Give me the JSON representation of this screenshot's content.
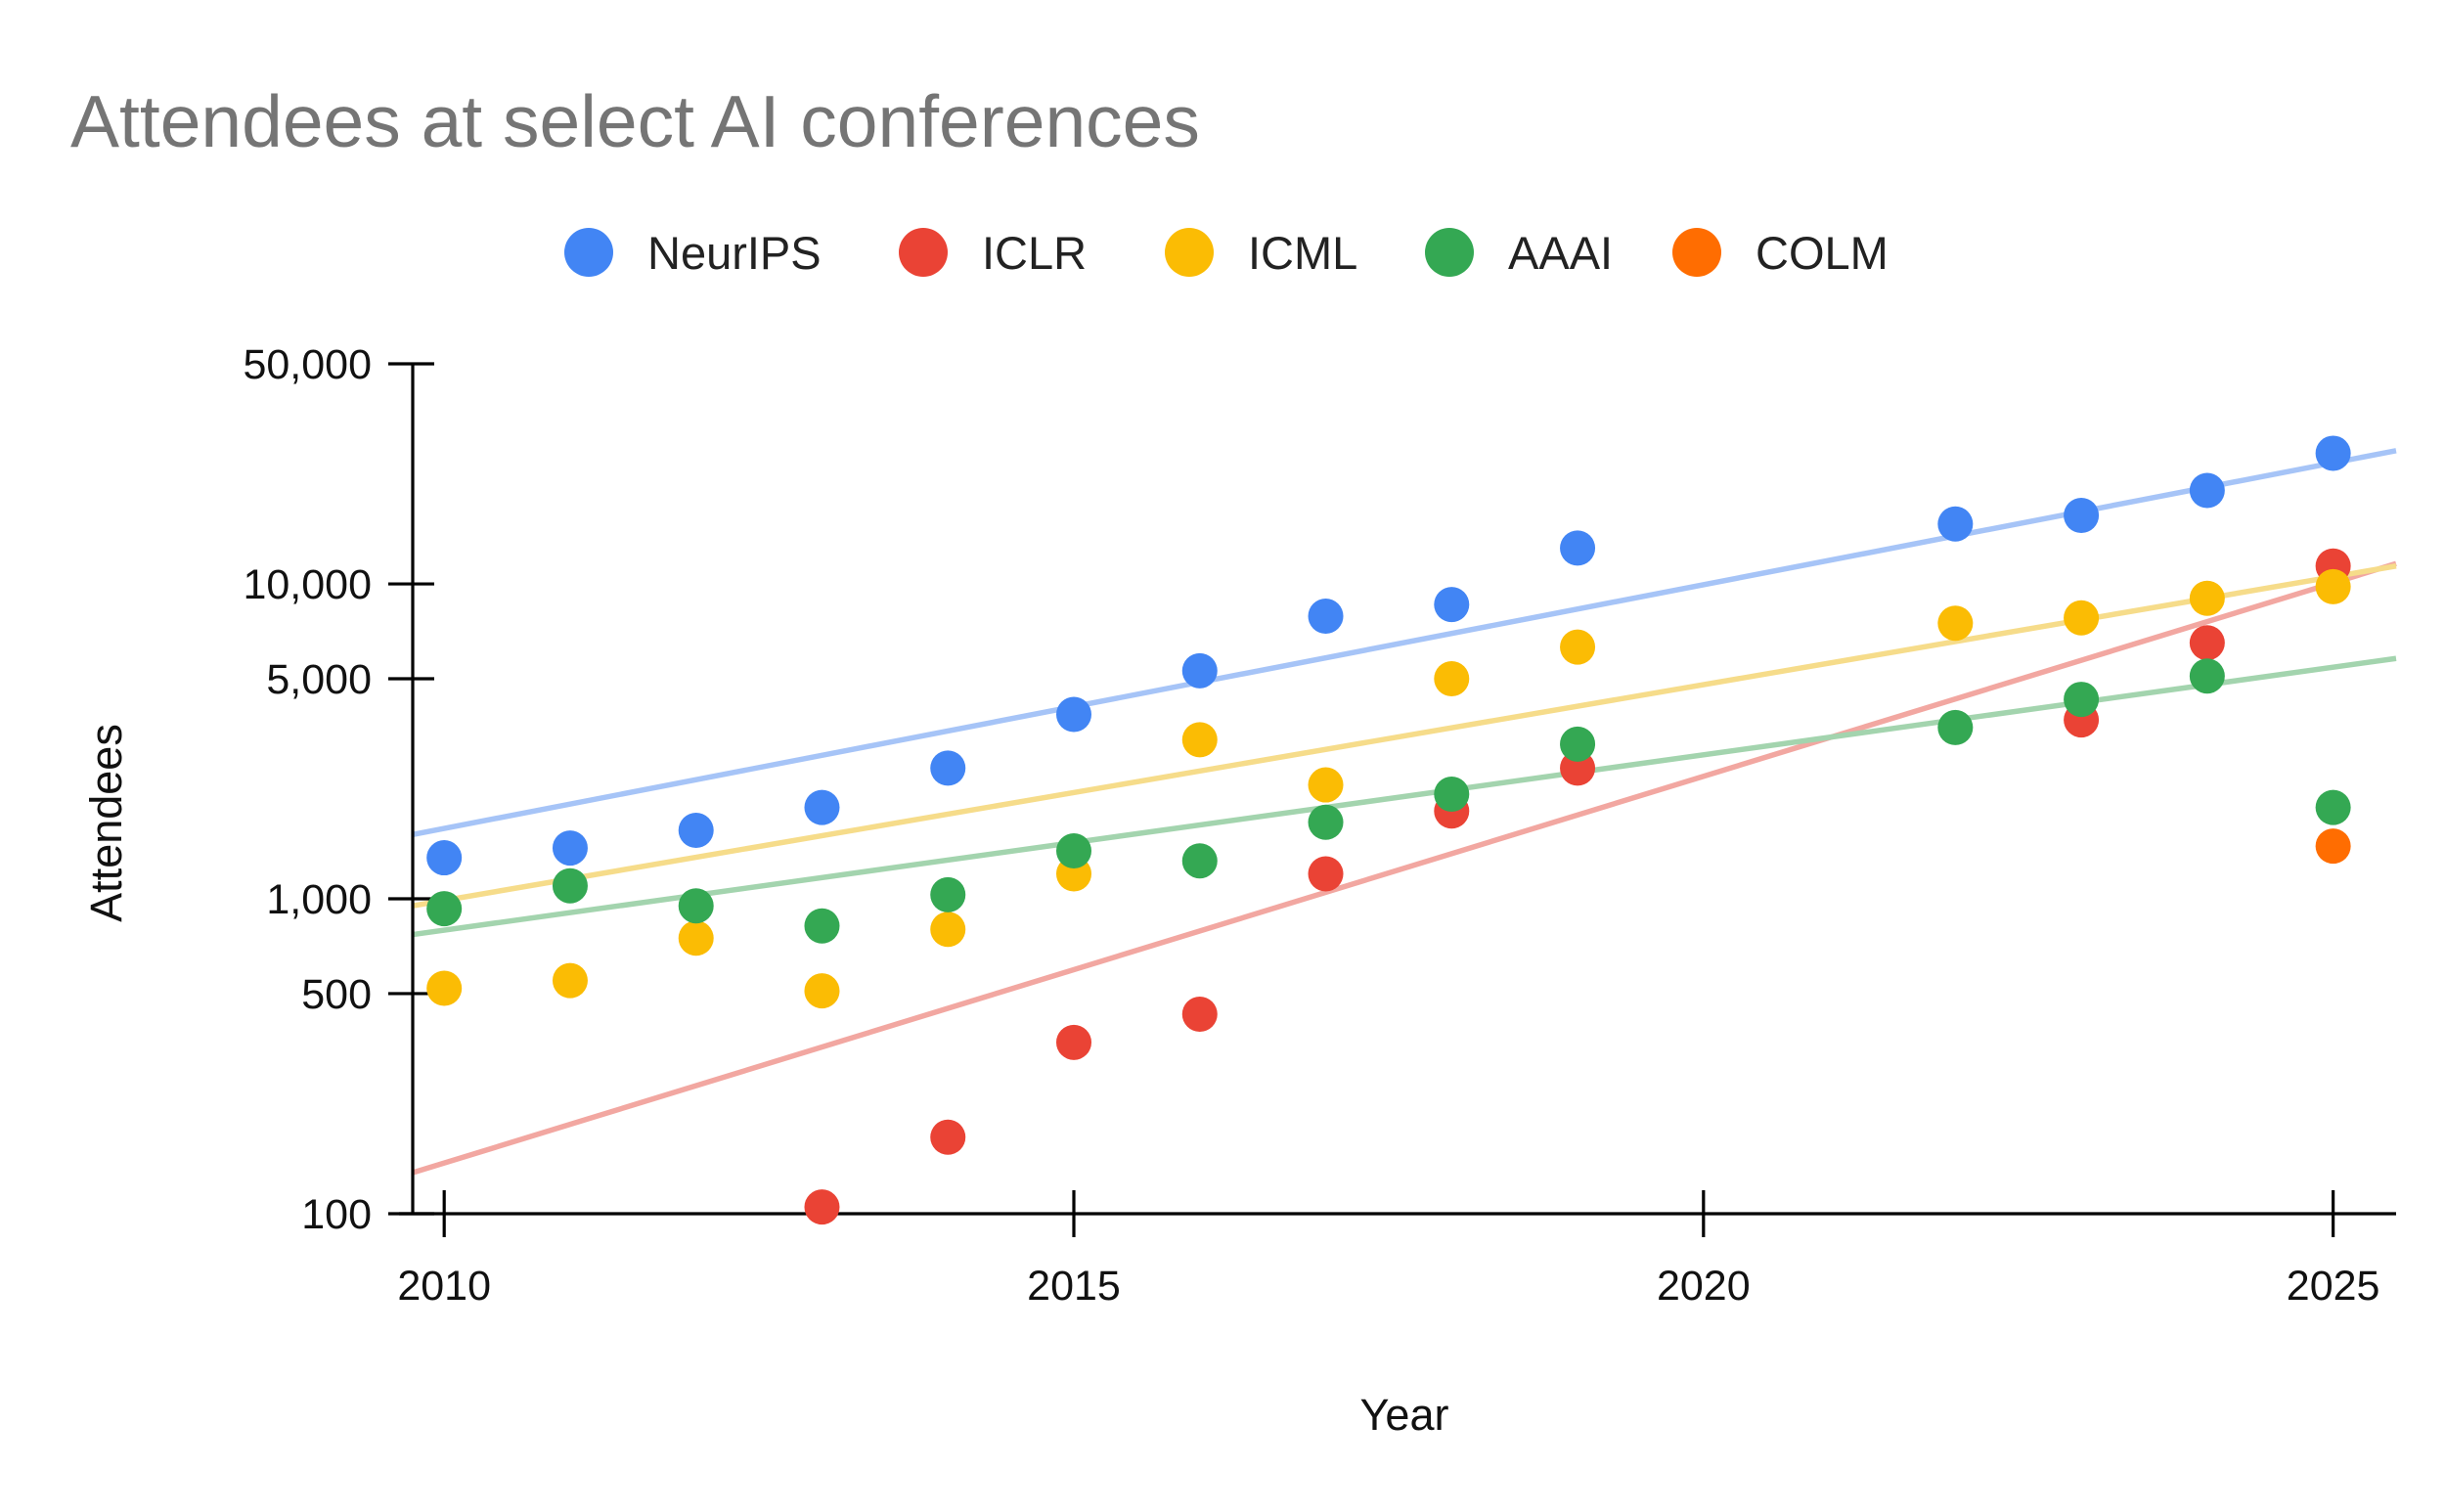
{
  "chart_data": {
    "type": "scatter",
    "title": "Attendees at select AI conferences",
    "xlabel": "Year",
    "ylabel": "Attendees",
    "y_scale": "log",
    "xlim": [
      2009.75,
      2025.5
    ],
    "ylim": [
      100,
      50000
    ],
    "x_ticks": [
      {
        "value": 2010,
        "label": "2010"
      },
      {
        "value": 2015,
        "label": "2015"
      },
      {
        "value": 2020,
        "label": "2020"
      },
      {
        "value": 2025,
        "label": "2025"
      }
    ],
    "y_ticks": [
      {
        "value": 100,
        "label": "100"
      },
      {
        "value": 500,
        "label": "500"
      },
      {
        "value": 1000,
        "label": "1,000"
      },
      {
        "value": 5000,
        "label": "5,000"
      },
      {
        "value": 10000,
        "label": "10,000"
      },
      {
        "value": 50000,
        "label": "50,000"
      }
    ],
    "grid": false,
    "legend_position": "top",
    "trendlines": "exponential",
    "series": [
      {
        "name": "NeurIPS",
        "color": "#4285F4",
        "trend_color": "#A6C4F7",
        "points": [
          {
            "x": 2010,
            "y": 1350
          },
          {
            "x": 2011,
            "y": 1450
          },
          {
            "x": 2012,
            "y": 1650
          },
          {
            "x": 2013,
            "y": 1950
          },
          {
            "x": 2014,
            "y": 2600
          },
          {
            "x": 2015,
            "y": 3850
          },
          {
            "x": 2016,
            "y": 5300
          },
          {
            "x": 2017,
            "y": 7900
          },
          {
            "x": 2018,
            "y": 8600
          },
          {
            "x": 2019,
            "y": 13000
          },
          {
            "x": 2022,
            "y": 15500
          },
          {
            "x": 2023,
            "y": 16500
          },
          {
            "x": 2024,
            "y": 19800
          },
          {
            "x": 2025,
            "y": 26000
          }
        ],
        "trend": {
          "y_at_x_start": 1600,
          "y_at_x_end": 26500
        }
      },
      {
        "name": "ICLR",
        "color": "#EA4335",
        "trend_color": "#F2A7A1",
        "points": [
          {
            "x": 2013,
            "y": 105
          },
          {
            "x": 2014,
            "y": 175
          },
          {
            "x": 2015,
            "y": 350
          },
          {
            "x": 2016,
            "y": 430
          },
          {
            "x": 2017,
            "y": 1200
          },
          {
            "x": 2018,
            "y": 1900
          },
          {
            "x": 2019,
            "y": 2600
          },
          {
            "x": 2023,
            "y": 3700
          },
          {
            "x": 2024,
            "y": 6500
          },
          {
            "x": 2025,
            "y": 11400
          }
        ],
        "trend": {
          "y_at_x_start": 135,
          "y_at_x_end": 11600
        }
      },
      {
        "name": "ICML",
        "color": "#FBBC04",
        "trend_color": "#F6DC8A",
        "points": [
          {
            "x": 2010,
            "y": 520
          },
          {
            "x": 2011,
            "y": 550
          },
          {
            "x": 2012,
            "y": 750
          },
          {
            "x": 2013,
            "y": 510
          },
          {
            "x": 2014,
            "y": 800
          },
          {
            "x": 2015,
            "y": 1200
          },
          {
            "x": 2016,
            "y": 3200
          },
          {
            "x": 2017,
            "y": 2300
          },
          {
            "x": 2018,
            "y": 5000
          },
          {
            "x": 2019,
            "y": 6300
          },
          {
            "x": 2022,
            "y": 7500
          },
          {
            "x": 2023,
            "y": 7800
          },
          {
            "x": 2024,
            "y": 9000
          },
          {
            "x": 2025,
            "y": 9800
          }
        ],
        "trend": {
          "y_at_x_start": 950,
          "y_at_x_end": 11400
        }
      },
      {
        "name": "AAAI",
        "color": "#34A853",
        "trend_color": "#A3D4AE",
        "points": [
          {
            "x": 2010,
            "y": 930
          },
          {
            "x": 2011,
            "y": 1100
          },
          {
            "x": 2012,
            "y": 950
          },
          {
            "x": 2013,
            "y": 820
          },
          {
            "x": 2014,
            "y": 1030
          },
          {
            "x": 2015,
            "y": 1420
          },
          {
            "x": 2016,
            "y": 1320
          },
          {
            "x": 2017,
            "y": 1750
          },
          {
            "x": 2018,
            "y": 2150
          },
          {
            "x": 2019,
            "y": 3100
          },
          {
            "x": 2022,
            "y": 3500
          },
          {
            "x": 2023,
            "y": 4300
          },
          {
            "x": 2024,
            "y": 5100
          },
          {
            "x": 2025,
            "y": 1950
          }
        ],
        "trend": {
          "y_at_x_start": 770,
          "y_at_x_end": 5800
        }
      },
      {
        "name": "COLM",
        "color": "#FF6D01",
        "points": [
          {
            "x": 2025,
            "y": 1470
          }
        ]
      }
    ]
  }
}
